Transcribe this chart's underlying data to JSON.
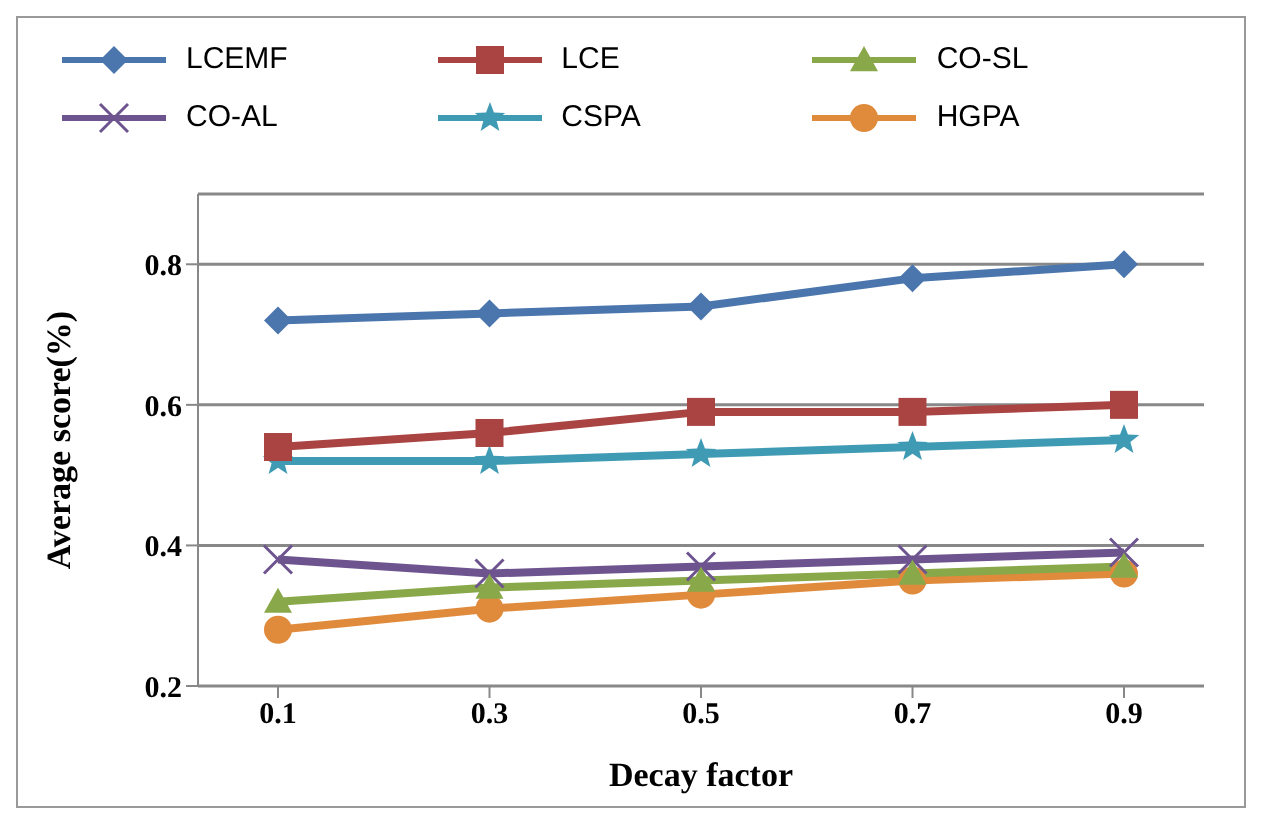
{
  "chart_data": {
    "type": "line",
    "xlabel": "Decay factor",
    "ylabel": "Average score(%)",
    "categories": [
      "0.1",
      "0.3",
      "0.5",
      "0.7",
      "0.9"
    ],
    "series": [
      {
        "name": "LCEMF",
        "color": "#4a76ad",
        "marker": "diamond",
        "values": [
          0.72,
          0.73,
          0.74,
          0.78,
          0.8
        ]
      },
      {
        "name": "LCE",
        "color": "#a94442",
        "marker": "square",
        "values": [
          0.54,
          0.56,
          0.59,
          0.59,
          0.6
        ]
      },
      {
        "name": "CO-SL",
        "color": "#88a84a",
        "marker": "triangle",
        "values": [
          0.32,
          0.34,
          0.35,
          0.36,
          0.37
        ]
      },
      {
        "name": "CO-AL",
        "color": "#6e548f",
        "marker": "cross",
        "values": [
          0.38,
          0.36,
          0.37,
          0.38,
          0.39
        ]
      },
      {
        "name": "CSPA",
        "color": "#3f9ab3",
        "marker": "star",
        "values": [
          0.52,
          0.52,
          0.53,
          0.54,
          0.55
        ]
      },
      {
        "name": "HGPA",
        "color": "#e08a3c",
        "marker": "circle",
        "values": [
          0.28,
          0.31,
          0.33,
          0.35,
          0.36
        ]
      }
    ],
    "ylim": [
      0.2,
      0.9
    ],
    "yticks": [
      0.2,
      0.4,
      0.6,
      0.8
    ],
    "grid": "y",
    "legend": "top"
  }
}
